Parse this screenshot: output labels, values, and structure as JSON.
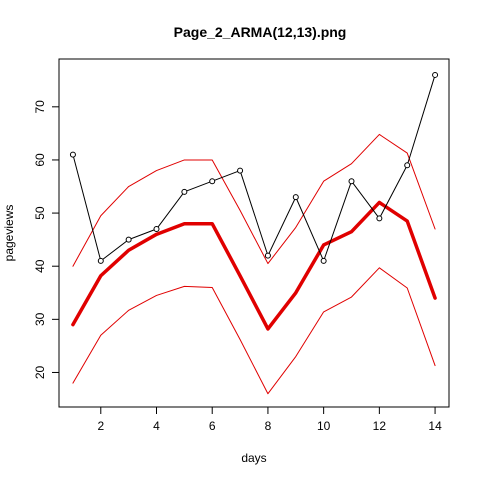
{
  "chart_data": {
    "type": "line",
    "title": "Page_2_ARMA(12,13).png",
    "xlabel": "days",
    "ylabel": "pageviews",
    "xlim": [
      0.5,
      14.5
    ],
    "ylim": [
      13.5,
      79
    ],
    "x_ticks": [
      2,
      4,
      6,
      8,
      10,
      12,
      14
    ],
    "y_ticks": [
      20,
      30,
      40,
      50,
      60,
      70
    ],
    "grid": false,
    "x": [
      1,
      2,
      3,
      4,
      5,
      6,
      7,
      8,
      9,
      10,
      11,
      12,
      13,
      14
    ],
    "series": [
      {
        "role": "observed",
        "color": "#000000",
        "markers": "open-circle",
        "values": [
          61,
          41,
          45,
          47,
          54,
          56,
          58,
          42,
          53,
          41,
          56,
          49,
          59,
          76
        ]
      },
      {
        "role": "fitted",
        "color": "#e00000",
        "values": [
          29,
          38.2,
          43,
          46,
          48,
          48,
          38.2,
          28.2,
          35,
          44,
          46.5,
          52,
          48.5,
          34
        ]
      },
      {
        "role": "upper-bound",
        "color": "#e00000",
        "values": [
          40,
          49.5,
          55,
          58,
          60,
          60,
          50.5,
          40.5,
          47.3,
          56,
          59.3,
          64.8,
          61.3,
          47
        ]
      },
      {
        "role": "lower-bound",
        "color": "#e00000",
        "values": [
          18,
          27,
          31.7,
          34.5,
          36.2,
          36,
          26.2,
          16,
          23,
          31.4,
          34.2,
          39.7,
          35.9,
          21.3
        ]
      }
    ]
  }
}
